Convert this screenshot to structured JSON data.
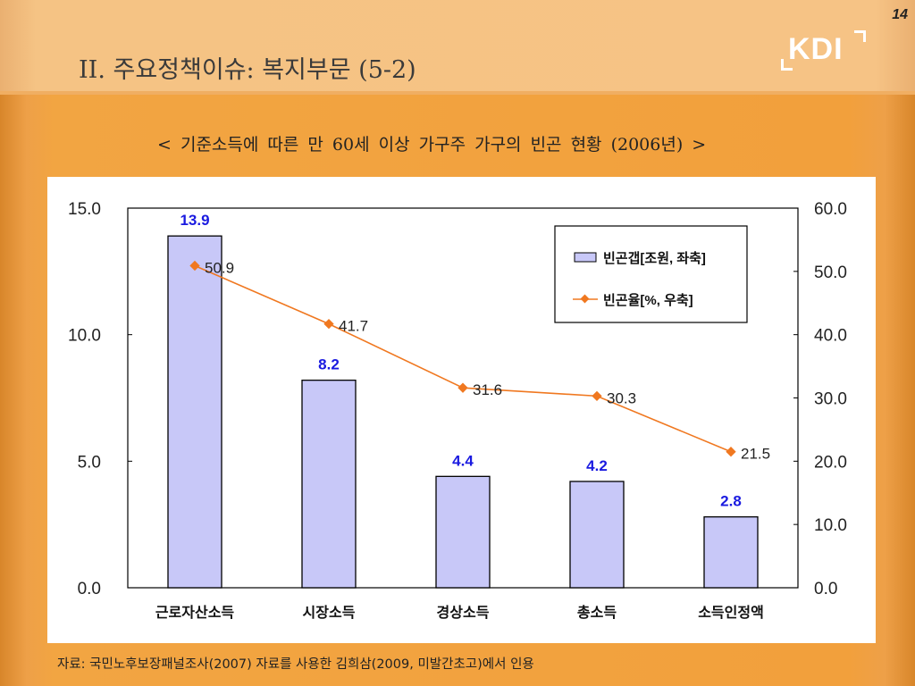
{
  "slide": {
    "title": "II. 주요정책이슈: 복지부문 (5-2)",
    "page_number": "14",
    "logo_text": "KDI",
    "subtitle": "< 기준소득에 따른 만 60세 이상 가구주 가구의 빈곤 현황 (2006년) >",
    "source": "자료: 국민노후보장패널조사(2007) 자료를 사용한 김희삼(2009, 미발간초고)에서 인용"
  },
  "colors": {
    "bar_fill": "#c8c8f8",
    "bar_stroke": "#000000",
    "bar_label": "#1a1ae0",
    "line": "#f07820",
    "axis": "#000000"
  },
  "chart_data": {
    "type": "bar",
    "title": "< 기준소득에 따른 만 60세 이상 가구주 가구의 빈곤 현황 (2006년) >",
    "categories": [
      "근로자산소득",
      "시장소득",
      "경상소득",
      "총소득",
      "소득인정액"
    ],
    "series": [
      {
        "name": "빈곤갭[조원, 좌축]",
        "type": "bar",
        "axis": "left",
        "values": [
          13.9,
          8.2,
          4.4,
          4.2,
          2.8
        ],
        "labels": [
          "13.9",
          "8.2",
          "4.4",
          "4.2",
          "2.8"
        ]
      },
      {
        "name": "빈곤율[%, 우축]",
        "type": "line",
        "axis": "right",
        "values": [
          50.9,
          41.7,
          31.6,
          30.3,
          21.5
        ],
        "labels": [
          "50.9",
          "41.7",
          "31.6",
          "30.3",
          "21.5"
        ]
      }
    ],
    "y_left": {
      "min": 0,
      "max": 15,
      "ticks": [
        "0.0",
        "5.0",
        "10.0",
        "15.0"
      ],
      "tick_values": [
        0,
        5,
        10,
        15
      ]
    },
    "y_right": {
      "min": 0,
      "max": 60,
      "ticks": [
        "0.0",
        "10.0",
        "20.0",
        "30.0",
        "40.0",
        "50.0",
        "60.0"
      ],
      "tick_values": [
        0,
        10,
        20,
        30,
        40,
        50,
        60
      ]
    },
    "xlabel": "",
    "ylabel": "",
    "grid": false,
    "legend": {
      "position": "top-right",
      "entries": [
        "빈곤갭[조원, 좌축]",
        "빈곤율[%, 우축]"
      ]
    }
  }
}
